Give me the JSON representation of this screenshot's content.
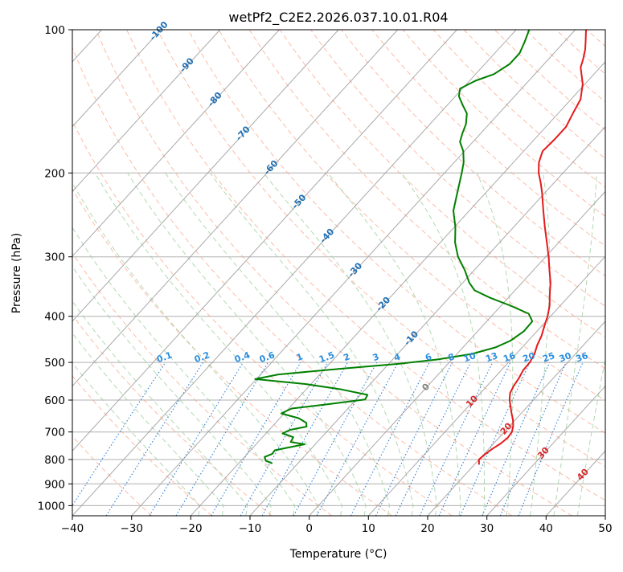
{
  "chart_data": {
    "type": "skew-t",
    "title": "wetPf2_C2E2.2026.037.10.01.R04",
    "xlabel": "Temperature (°C)",
    "ylabel": "Pressure (hPa)",
    "xlim": [
      -40,
      50
    ],
    "ylim_hpa": [
      1050,
      100
    ],
    "log_pressure_axis": true,
    "grid": true,
    "x_ticks": [
      -40,
      -30,
      -20,
      -10,
      0,
      10,
      20,
      30,
      40,
      50
    ],
    "y_ticks": [
      100,
      200,
      300,
      400,
      500,
      600,
      700,
      800,
      900,
      1000
    ],
    "isotherm_labels": [
      -100,
      -90,
      -80,
      -70,
      -60,
      -50,
      -40,
      -30,
      -20,
      -10,
      0,
      10,
      20,
      30,
      40
    ],
    "mixing_ratio_labels": [
      "0.1",
      "0.2",
      "0.4",
      "0.6",
      "1",
      "1.5",
      "2",
      "3",
      "4",
      "6",
      "8",
      "10",
      "13",
      "16",
      "20",
      "25",
      "30",
      "36"
    ],
    "series": [
      {
        "role": "temperature",
        "color": "#e41a1c",
        "points": [
          [
            820,
            20.8
          ],
          [
            800,
            20.0
          ],
          [
            780,
            20.2
          ],
          [
            760,
            20.6
          ],
          [
            740,
            21.2
          ],
          [
            720,
            21.5
          ],
          [
            700,
            21.3
          ],
          [
            680,
            20.6
          ],
          [
            660,
            19.6
          ],
          [
            640,
            18.4
          ],
          [
            620,
            17.2
          ],
          [
            600,
            16.0
          ],
          [
            580,
            15.0
          ],
          [
            560,
            14.5
          ],
          [
            540,
            14.2
          ],
          [
            520,
            13.7
          ],
          [
            500,
            13.6
          ],
          [
            480,
            13.1
          ],
          [
            460,
            12.2
          ],
          [
            440,
            11.5
          ],
          [
            420,
            10.5
          ],
          [
            400,
            9.5
          ],
          [
            380,
            8.2
          ],
          [
            360,
            6.5
          ],
          [
            340,
            4.8
          ],
          [
            320,
            2.7
          ],
          [
            300,
            0.5
          ],
          [
            280,
            -2.0
          ],
          [
            260,
            -4.7
          ],
          [
            240,
            -7.5
          ],
          [
            220,
            -10.5
          ],
          [
            210,
            -12.2
          ],
          [
            200,
            -14.1
          ],
          [
            190,
            -15.7
          ],
          [
            180,
            -16.8
          ],
          [
            170,
            -16.6
          ],
          [
            160,
            -16.6
          ],
          [
            150,
            -17.5
          ],
          [
            140,
            -18.4
          ],
          [
            130,
            -20.4
          ],
          [
            120,
            -23.3
          ],
          [
            115,
            -24.2
          ],
          [
            110,
            -25.3
          ],
          [
            105,
            -26.7
          ],
          [
            100,
            -28.2
          ]
        ]
      },
      {
        "role": "dewpoint",
        "color": "#008000",
        "points": [
          [
            815,
            -14.3
          ],
          [
            805,
            -15.8
          ],
          [
            790,
            -16.6
          ],
          [
            778,
            -15.8
          ],
          [
            765,
            -15.9
          ],
          [
            755,
            -14.1
          ],
          [
            743,
            -11.8
          ],
          [
            735,
            -14.5
          ],
          [
            718,
            -14.8
          ],
          [
            705,
            -17.2
          ],
          [
            693,
            -16.5
          ],
          [
            682,
            -14.2
          ],
          [
            670,
            -14.8
          ],
          [
            655,
            -16.8
          ],
          [
            640,
            -20.5
          ],
          [
            625,
            -19.5
          ],
          [
            612,
            -14.0
          ],
          [
            598,
            -8.5
          ],
          [
            585,
            -8.8
          ],
          [
            570,
            -14.0
          ],
          [
            555,
            -21.0
          ],
          [
            542,
            -30.2
          ],
          [
            530,
            -27.0
          ],
          [
            515,
            -17.0
          ],
          [
            503,
            -8.0
          ],
          [
            493,
            -2.5
          ],
          [
            480,
            2.5
          ],
          [
            465,
            5.5
          ],
          [
            450,
            7.0
          ],
          [
            430,
            7.8
          ],
          [
            410,
            7.7
          ],
          [
            395,
            5.9
          ],
          [
            380,
            1.6
          ],
          [
            366,
            -3.0
          ],
          [
            353,
            -6.8
          ],
          [
            340,
            -8.9
          ],
          [
            320,
            -11.6
          ],
          [
            300,
            -14.8
          ],
          [
            280,
            -17.5
          ],
          [
            260,
            -19.8
          ],
          [
            240,
            -22.7
          ],
          [
            220,
            -24.8
          ],
          [
            200,
            -27.1
          ],
          [
            190,
            -28.4
          ],
          [
            180,
            -30.2
          ],
          [
            172,
            -32.2
          ],
          [
            165,
            -33.1
          ],
          [
            158,
            -33.9
          ],
          [
            150,
            -35.4
          ],
          [
            144,
            -37.4
          ],
          [
            138,
            -39.4
          ],
          [
            133,
            -40.4
          ],
          [
            128,
            -39.0
          ],
          [
            124,
            -36.9
          ],
          [
            118,
            -35.8
          ],
          [
            112,
            -35.8
          ],
          [
            106,
            -36.7
          ],
          [
            100,
            -37.8
          ]
        ]
      }
    ]
  }
}
